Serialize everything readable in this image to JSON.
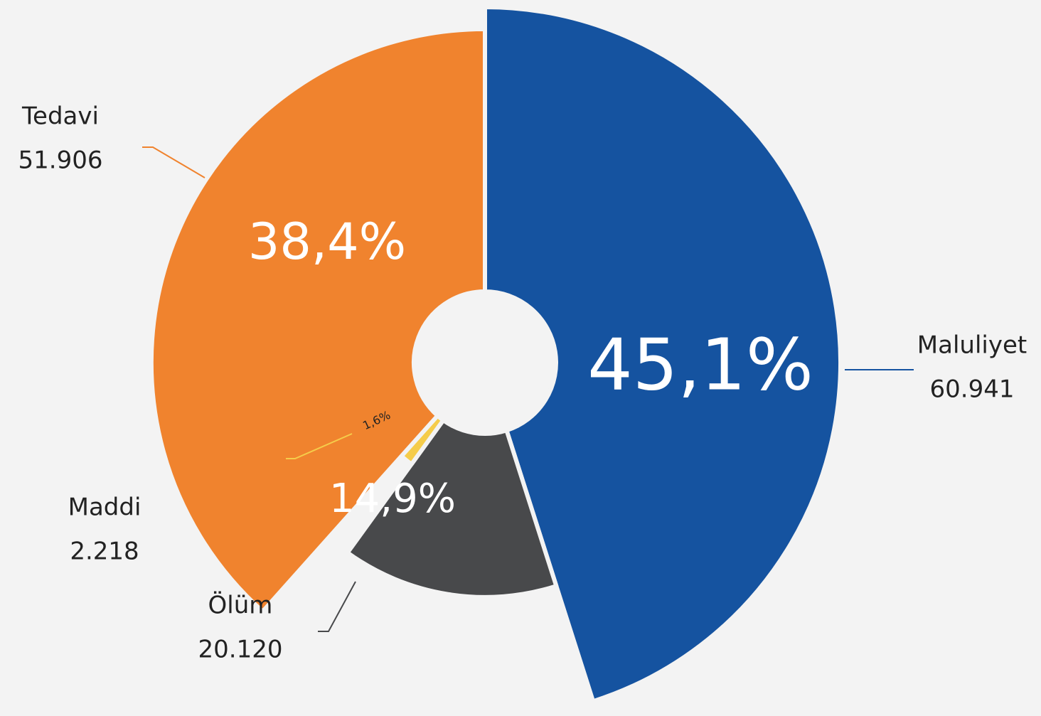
{
  "chart_data": {
    "type": "pie",
    "categories": [
      "Maluliyet",
      "Ölüm",
      "Maddi",
      "Tedavi"
    ],
    "values": [
      60941,
      20120,
      2218,
      51906
    ],
    "value_labels": [
      "60.941",
      "20.120",
      "2.218",
      "51.906"
    ],
    "percents": [
      45.1,
      14.9,
      1.6,
      38.4
    ],
    "percent_labels": [
      "45,1%",
      "14,9%",
      "1,6%",
      "38,4%"
    ],
    "colors": [
      "#1553a0",
      "#48494b",
      "#f5cc4a",
      "#f0832e"
    ]
  }
}
